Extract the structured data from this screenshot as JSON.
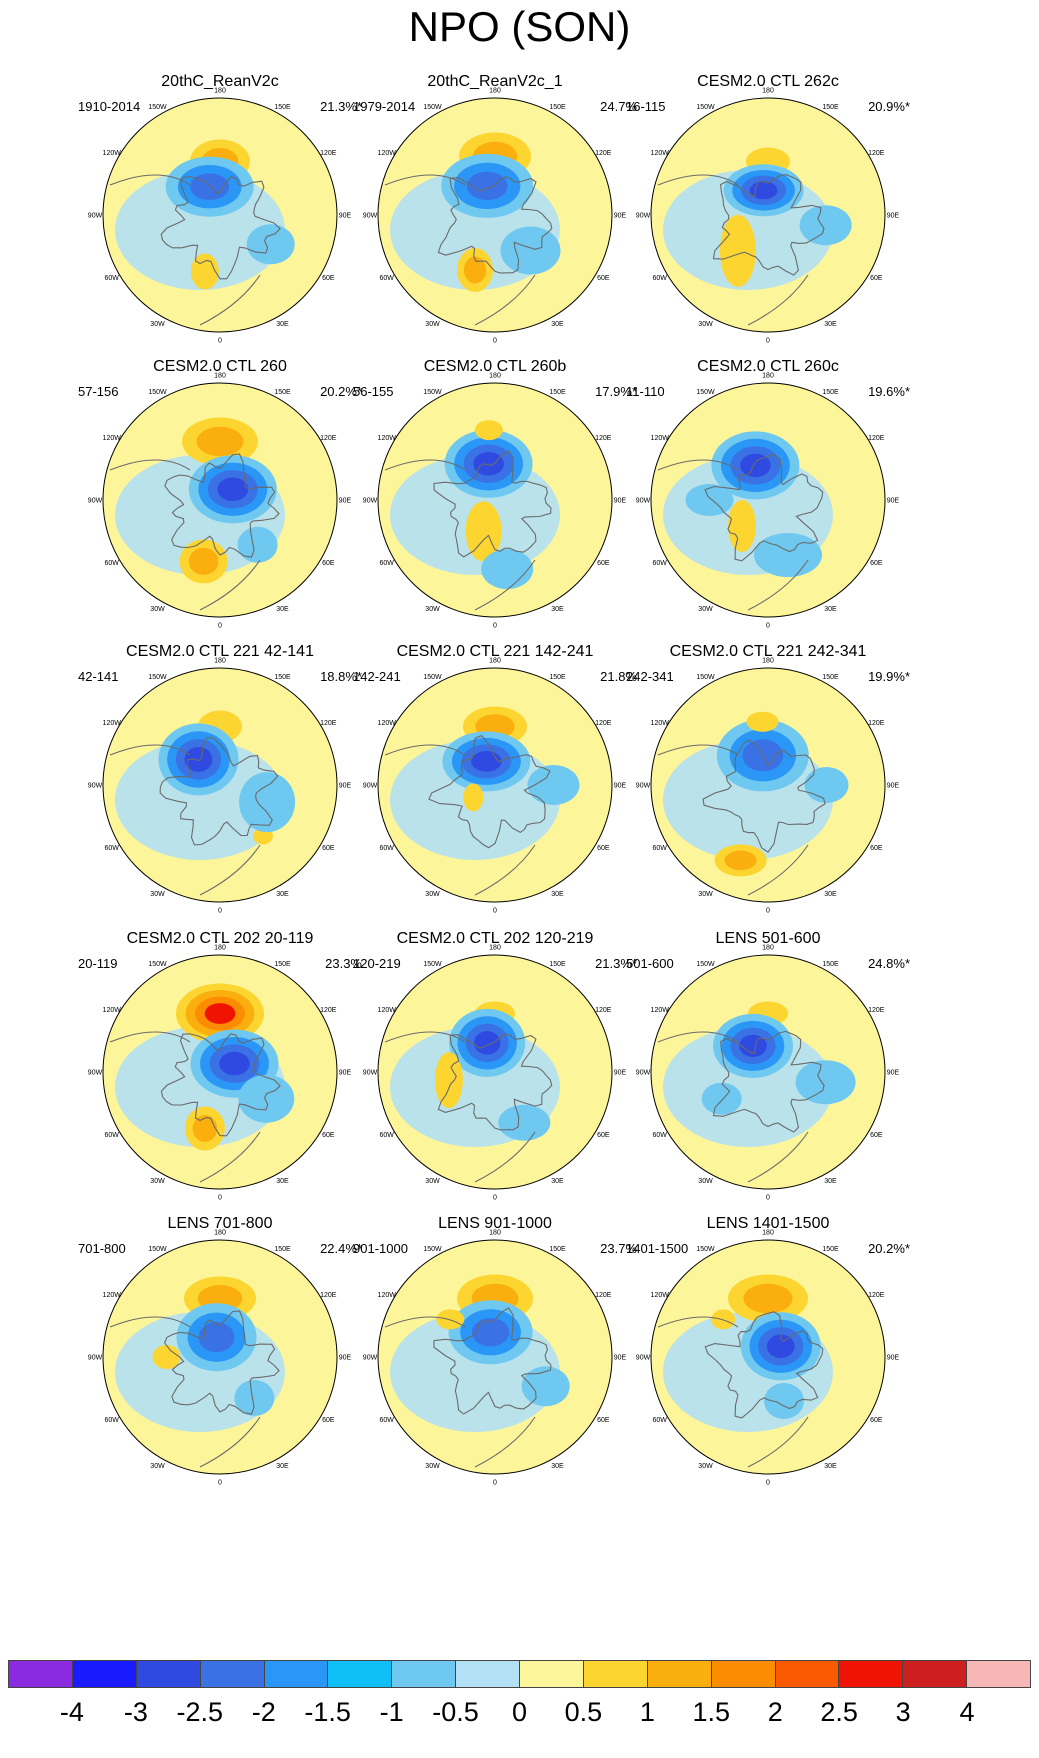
{
  "title": "NPO (SON)",
  "panels": [
    {
      "title": "20thC_ReanV2c",
      "years": "1910-2014",
      "percent": "21.3%*",
      "anomalies": [
        {
          "lon": 180,
          "lat": 58,
          "w": 30,
          "h": 22,
          "level": 2
        },
        {
          "lon": 160,
          "lat": 72,
          "w": 44,
          "h": 30,
          "level": -3
        },
        {
          "lon": 15,
          "lat": 55,
          "w": 14,
          "h": 18,
          "level": 1
        },
        {
          "lon": -60,
          "lat": 55,
          "w": 24,
          "h": 20,
          "level": -1
        }
      ]
    },
    {
      "title": "20thC_ReanV2c_1",
      "years": "1979-2014",
      "percent": "24.7%",
      "anomalies": [
        {
          "lon": 180,
          "lat": 55,
          "w": 36,
          "h": 24,
          "level": 2
        },
        {
          "lon": 165,
          "lat": 72,
          "w": 46,
          "h": 32,
          "level": -3
        },
        {
          "lon": 20,
          "lat": 55,
          "w": 18,
          "h": 22,
          "level": 2
        },
        {
          "lon": -45,
          "lat": 60,
          "w": 30,
          "h": 24,
          "level": -1
        }
      ]
    },
    {
      "title": "CESM2.0 CTL 262c",
      "years": "16-115",
      "percent": "20.9%*",
      "anomalies": [
        {
          "lon": 180,
          "lat": 58,
          "w": 22,
          "h": 14,
          "level": 1
        },
        {
          "lon": 170,
          "lat": 75,
          "w": 40,
          "h": 26,
          "level": -4
        },
        {
          "lon": 40,
          "lat": 62,
          "w": 18,
          "h": 36,
          "level": 1
        },
        {
          "lon": -80,
          "lat": 55,
          "w": 26,
          "h": 20,
          "level": -1
        }
      ]
    },
    {
      "title": "CESM2.0 CTL 260",
      "years": "57-156",
      "percent": "20.2%*",
      "anomalies": [
        {
          "lon": 180,
          "lat": 55,
          "w": 38,
          "h": 24,
          "level": 2
        },
        {
          "lon": 230,
          "lat": 80,
          "w": 44,
          "h": 34,
          "level": -4
        },
        {
          "lon": 15,
          "lat": 52,
          "w": 24,
          "h": 22,
          "level": 2
        },
        {
          "lon": -40,
          "lat": 55,
          "w": 20,
          "h": 18,
          "level": -1
        }
      ]
    },
    {
      "title": "CESM2.0 CTL 260b",
      "years": "56-155",
      "percent": "17.9%*",
      "anomalies": [
        {
          "lon": 170,
          "lat": 68,
          "w": 44,
          "h": 34,
          "level": -4
        },
        {
          "lon": 20,
          "lat": 70,
          "w": 18,
          "h": 30,
          "level": 1
        },
        {
          "lon": -10,
          "lat": 48,
          "w": 26,
          "h": 20,
          "level": -1
        },
        {
          "lon": 175,
          "lat": 48,
          "w": 14,
          "h": 10,
          "level": 1
        }
      ]
    },
    {
      "title": "CESM2.0 CTL 260c",
      "years": "11-110",
      "percent": "19.6%*",
      "anomalies": [
        {
          "lon": 160,
          "lat": 68,
          "w": 44,
          "h": 34,
          "level": -4
        },
        {
          "lon": 45,
          "lat": 68,
          "w": 14,
          "h": 26,
          "level": 1
        },
        {
          "lon": -20,
          "lat": 55,
          "w": 34,
          "h": 22,
          "level": -1
        },
        {
          "lon": 90,
          "lat": 55,
          "w": 24,
          "h": 16,
          "level": -1
        }
      ]
    },
    {
      "title": "CESM2.0 CTL 221 42-141",
      "years": "42-141",
      "percent": "18.8%*",
      "anomalies": [
        {
          "lon": 180,
          "lat": 55,
          "w": 22,
          "h": 16,
          "level": 1
        },
        {
          "lon": 140,
          "lat": 70,
          "w": 40,
          "h": 36,
          "level": -4
        },
        {
          "lon": -40,
          "lat": 50,
          "w": 10,
          "h": 8,
          "level": 1
        },
        {
          "lon": -70,
          "lat": 60,
          "w": 28,
          "h": 30,
          "level": -1
        }
      ]
    },
    {
      "title": "CESM2.0 CTL 221 142-241",
      "years": "142-241",
      "percent": "21.8%",
      "anomalies": [
        {
          "lon": 180,
          "lat": 55,
          "w": 32,
          "h": 20,
          "level": 2
        },
        {
          "lon": 160,
          "lat": 75,
          "w": 44,
          "h": 30,
          "level": -4
        },
        {
          "lon": 60,
          "lat": 75,
          "w": 10,
          "h": 14,
          "level": 1
        },
        {
          "lon": -90,
          "lat": 55,
          "w": 26,
          "h": 20,
          "level": -1
        }
      ]
    },
    {
      "title": "CESM2.0 CTL 221 242-341",
      "years": "242-341",
      "percent": "19.9%*",
      "anomalies": [
        {
          "lon": 170,
          "lat": 72,
          "w": 46,
          "h": 36,
          "level": -3
        },
        {
          "lon": 20,
          "lat": 42,
          "w": 26,
          "h": 16,
          "level": 2
        },
        {
          "lon": -90,
          "lat": 55,
          "w": 22,
          "h": 18,
          "level": -1
        },
        {
          "lon": 175,
          "lat": 52,
          "w": 16,
          "h": 10,
          "level": 1
        }
      ]
    },
    {
      "title": "CESM2.0 CTL 202 20-119",
      "years": "20-119",
      "percent": "23.3%",
      "anomalies": [
        {
          "lon": 180,
          "lat": 55,
          "w": 44,
          "h": 30,
          "level": 4
        },
        {
          "lon": 240,
          "lat": 80,
          "w": 44,
          "h": 34,
          "level": -4
        },
        {
          "lon": 15,
          "lat": 55,
          "w": 20,
          "h": 22,
          "level": 2
        },
        {
          "lon": -60,
          "lat": 58,
          "w": 28,
          "h": 24,
          "level": -1
        }
      ]
    },
    {
      "title": "CESM2.0 CTL 202 120-219",
      "years": "120-219",
      "percent": "21.3%*",
      "anomalies": [
        {
          "lon": 180,
          "lat": 55,
          "w": 20,
          "h": 12,
          "level": 1
        },
        {
          "lon": 165,
          "lat": 72,
          "w": 38,
          "h": 34,
          "level": -4
        },
        {
          "lon": 80,
          "lat": 62,
          "w": 14,
          "h": 28,
          "level": 1
        },
        {
          "lon": -30,
          "lat": 55,
          "w": 26,
          "h": 18,
          "level": -1
        }
      ]
    },
    {
      "title": "LENS 501-600",
      "years": "501-600",
      "percent": "24.8%*",
      "anomalies": [
        {
          "lon": 180,
          "lat": 55,
          "w": 20,
          "h": 12,
          "level": 1
        },
        {
          "lon": 150,
          "lat": 72,
          "w": 40,
          "h": 32,
          "level": -4
        },
        {
          "lon": -80,
          "lat": 55,
          "w": 30,
          "h": 22,
          "level": -1
        },
        {
          "lon": 60,
          "lat": 58,
          "w": 20,
          "h": 16,
          "level": -1
        }
      ]
    },
    {
      "title": "LENS 701-800",
      "years": "701-800",
      "percent": "22.4%*",
      "anomalies": [
        {
          "lon": 180,
          "lat": 55,
          "w": 36,
          "h": 22,
          "level": 2
        },
        {
          "lon": 170,
          "lat": 78,
          "w": 40,
          "h": 34,
          "level": -3
        },
        {
          "lon": -40,
          "lat": 58,
          "w": 20,
          "h": 18,
          "level": -1
        },
        {
          "lon": 90,
          "lat": 58,
          "w": 14,
          "h": 12,
          "level": 1
        }
      ]
    },
    {
      "title": "LENS 901-1000",
      "years": "901-1000",
      "percent": "23.7%",
      "anomalies": [
        {
          "lon": 180,
          "lat": 55,
          "w": 38,
          "h": 24,
          "level": 2
        },
        {
          "lon": 170,
          "lat": 75,
          "w": 42,
          "h": 32,
          "level": -3
        },
        {
          "lon": -60,
          "lat": 55,
          "w": 24,
          "h": 20,
          "level": -1
        },
        {
          "lon": 130,
          "lat": 55,
          "w": 14,
          "h": 10,
          "level": 1
        }
      ]
    },
    {
      "title": "LENS 1401-1500",
      "years": "1401-1500",
      "percent": "20.2%*",
      "anomalies": [
        {
          "lon": 180,
          "lat": 55,
          "w": 40,
          "h": 24,
          "level": 2
        },
        {
          "lon": 230,
          "lat": 80,
          "w": 40,
          "h": 34,
          "level": -4
        },
        {
          "lon": -20,
          "lat": 62,
          "w": 20,
          "h": 18,
          "level": -1
        },
        {
          "lon": 130,
          "lat": 55,
          "w": 12,
          "h": 10,
          "level": 1
        }
      ]
    }
  ],
  "lon_labels": [
    "180",
    "150E",
    "120E",
    "90E",
    "60E",
    "30E",
    "0",
    "30W",
    "60W",
    "90W",
    "120W",
    "150W"
  ],
  "colorbar": {
    "colors": [
      "#8a2be2",
      "#1a1aff",
      "#2f4ae0",
      "#3a72e6",
      "#2a96f5",
      "#10bff5",
      "#6ec8f0",
      "#b3e0f4",
      "#fdf59a",
      "#fcd531",
      "#fbaf0e",
      "#fc8d02",
      "#fc5a02",
      "#f01302",
      "#cd1f1e",
      "#f7b7b7"
    ],
    "labels": [
      "-4",
      "-3",
      "-2.5",
      "-2",
      "-1.5",
      "-1",
      "-0.5",
      "0",
      "0.5",
      "1",
      "1.5",
      "2",
      "2.5",
      "3",
      "4"
    ]
  },
  "level_colors": {
    "-4": "#2f4ae0",
    "-3": "#3a72e6",
    "-2": "#2a96f5",
    "-1": "#6ec8f0",
    "1": "#fcd531",
    "2": "#fbaf0e",
    "3": "#fc8d02",
    "4": "#f01302"
  }
}
